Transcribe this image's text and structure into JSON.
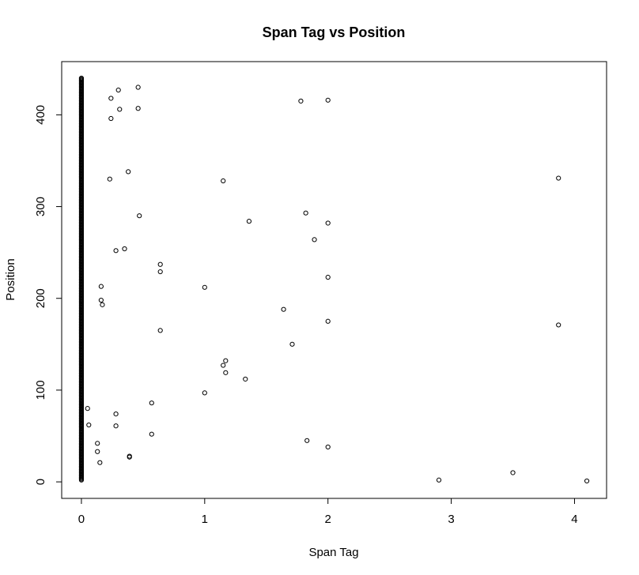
{
  "chart_data": {
    "type": "scatter",
    "title": "Span Tag vs Position",
    "xlabel": "Span Tag",
    "ylabel": "Position",
    "xlim": [
      -0.16,
      4.26
    ],
    "ylim": [
      -18,
      458
    ],
    "x_ticks": [
      0,
      1,
      2,
      3,
      4
    ],
    "y_ticks": [
      0,
      100,
      200,
      300,
      400
    ],
    "grid": false,
    "legend": "none",
    "points": [
      [
        0.05,
        80
      ],
      [
        0.06,
        62
      ],
      [
        0.13,
        42
      ],
      [
        0.13,
        33
      ],
      [
        0.15,
        21
      ],
      [
        0.16,
        213
      ],
      [
        0.16,
        198
      ],
      [
        0.17,
        193
      ],
      [
        0.23,
        330
      ],
      [
        0.24,
        418
      ],
      [
        0.24,
        396
      ],
      [
        0.28,
        252
      ],
      [
        0.28,
        74
      ],
      [
        0.28,
        61
      ],
      [
        0.3,
        427
      ],
      [
        0.31,
        406
      ],
      [
        0.35,
        254
      ],
      [
        0.38,
        338
      ],
      [
        0.39,
        28
      ],
      [
        0.39,
        27
      ],
      [
        0.46,
        430
      ],
      [
        0.46,
        407
      ],
      [
        0.47,
        290
      ],
      [
        0.57,
        86
      ],
      [
        0.57,
        52
      ],
      [
        0.64,
        237
      ],
      [
        0.64,
        229
      ],
      [
        0.64,
        165
      ],
      [
        1.0,
        212
      ],
      [
        1.0,
        97
      ],
      [
        1.15,
        328
      ],
      [
        1.15,
        127
      ],
      [
        1.17,
        132
      ],
      [
        1.17,
        119
      ],
      [
        1.33,
        112
      ],
      [
        1.36,
        284
      ],
      [
        1.64,
        188
      ],
      [
        1.71,
        150
      ],
      [
        1.78,
        415
      ],
      [
        1.82,
        293
      ],
      [
        1.83,
        45
      ],
      [
        1.89,
        264
      ],
      [
        2.0,
        416
      ],
      [
        2.0,
        282
      ],
      [
        2.0,
        223
      ],
      [
        2.0,
        175
      ],
      [
        2.0,
        38
      ],
      [
        2.9,
        2
      ],
      [
        3.5,
        10
      ],
      [
        3.87,
        331
      ],
      [
        3.87,
        171
      ],
      [
        4.1,
        1
      ]
    ],
    "dense_column": {
      "x": 0,
      "y_from": 2,
      "y_to": 440
    }
  }
}
